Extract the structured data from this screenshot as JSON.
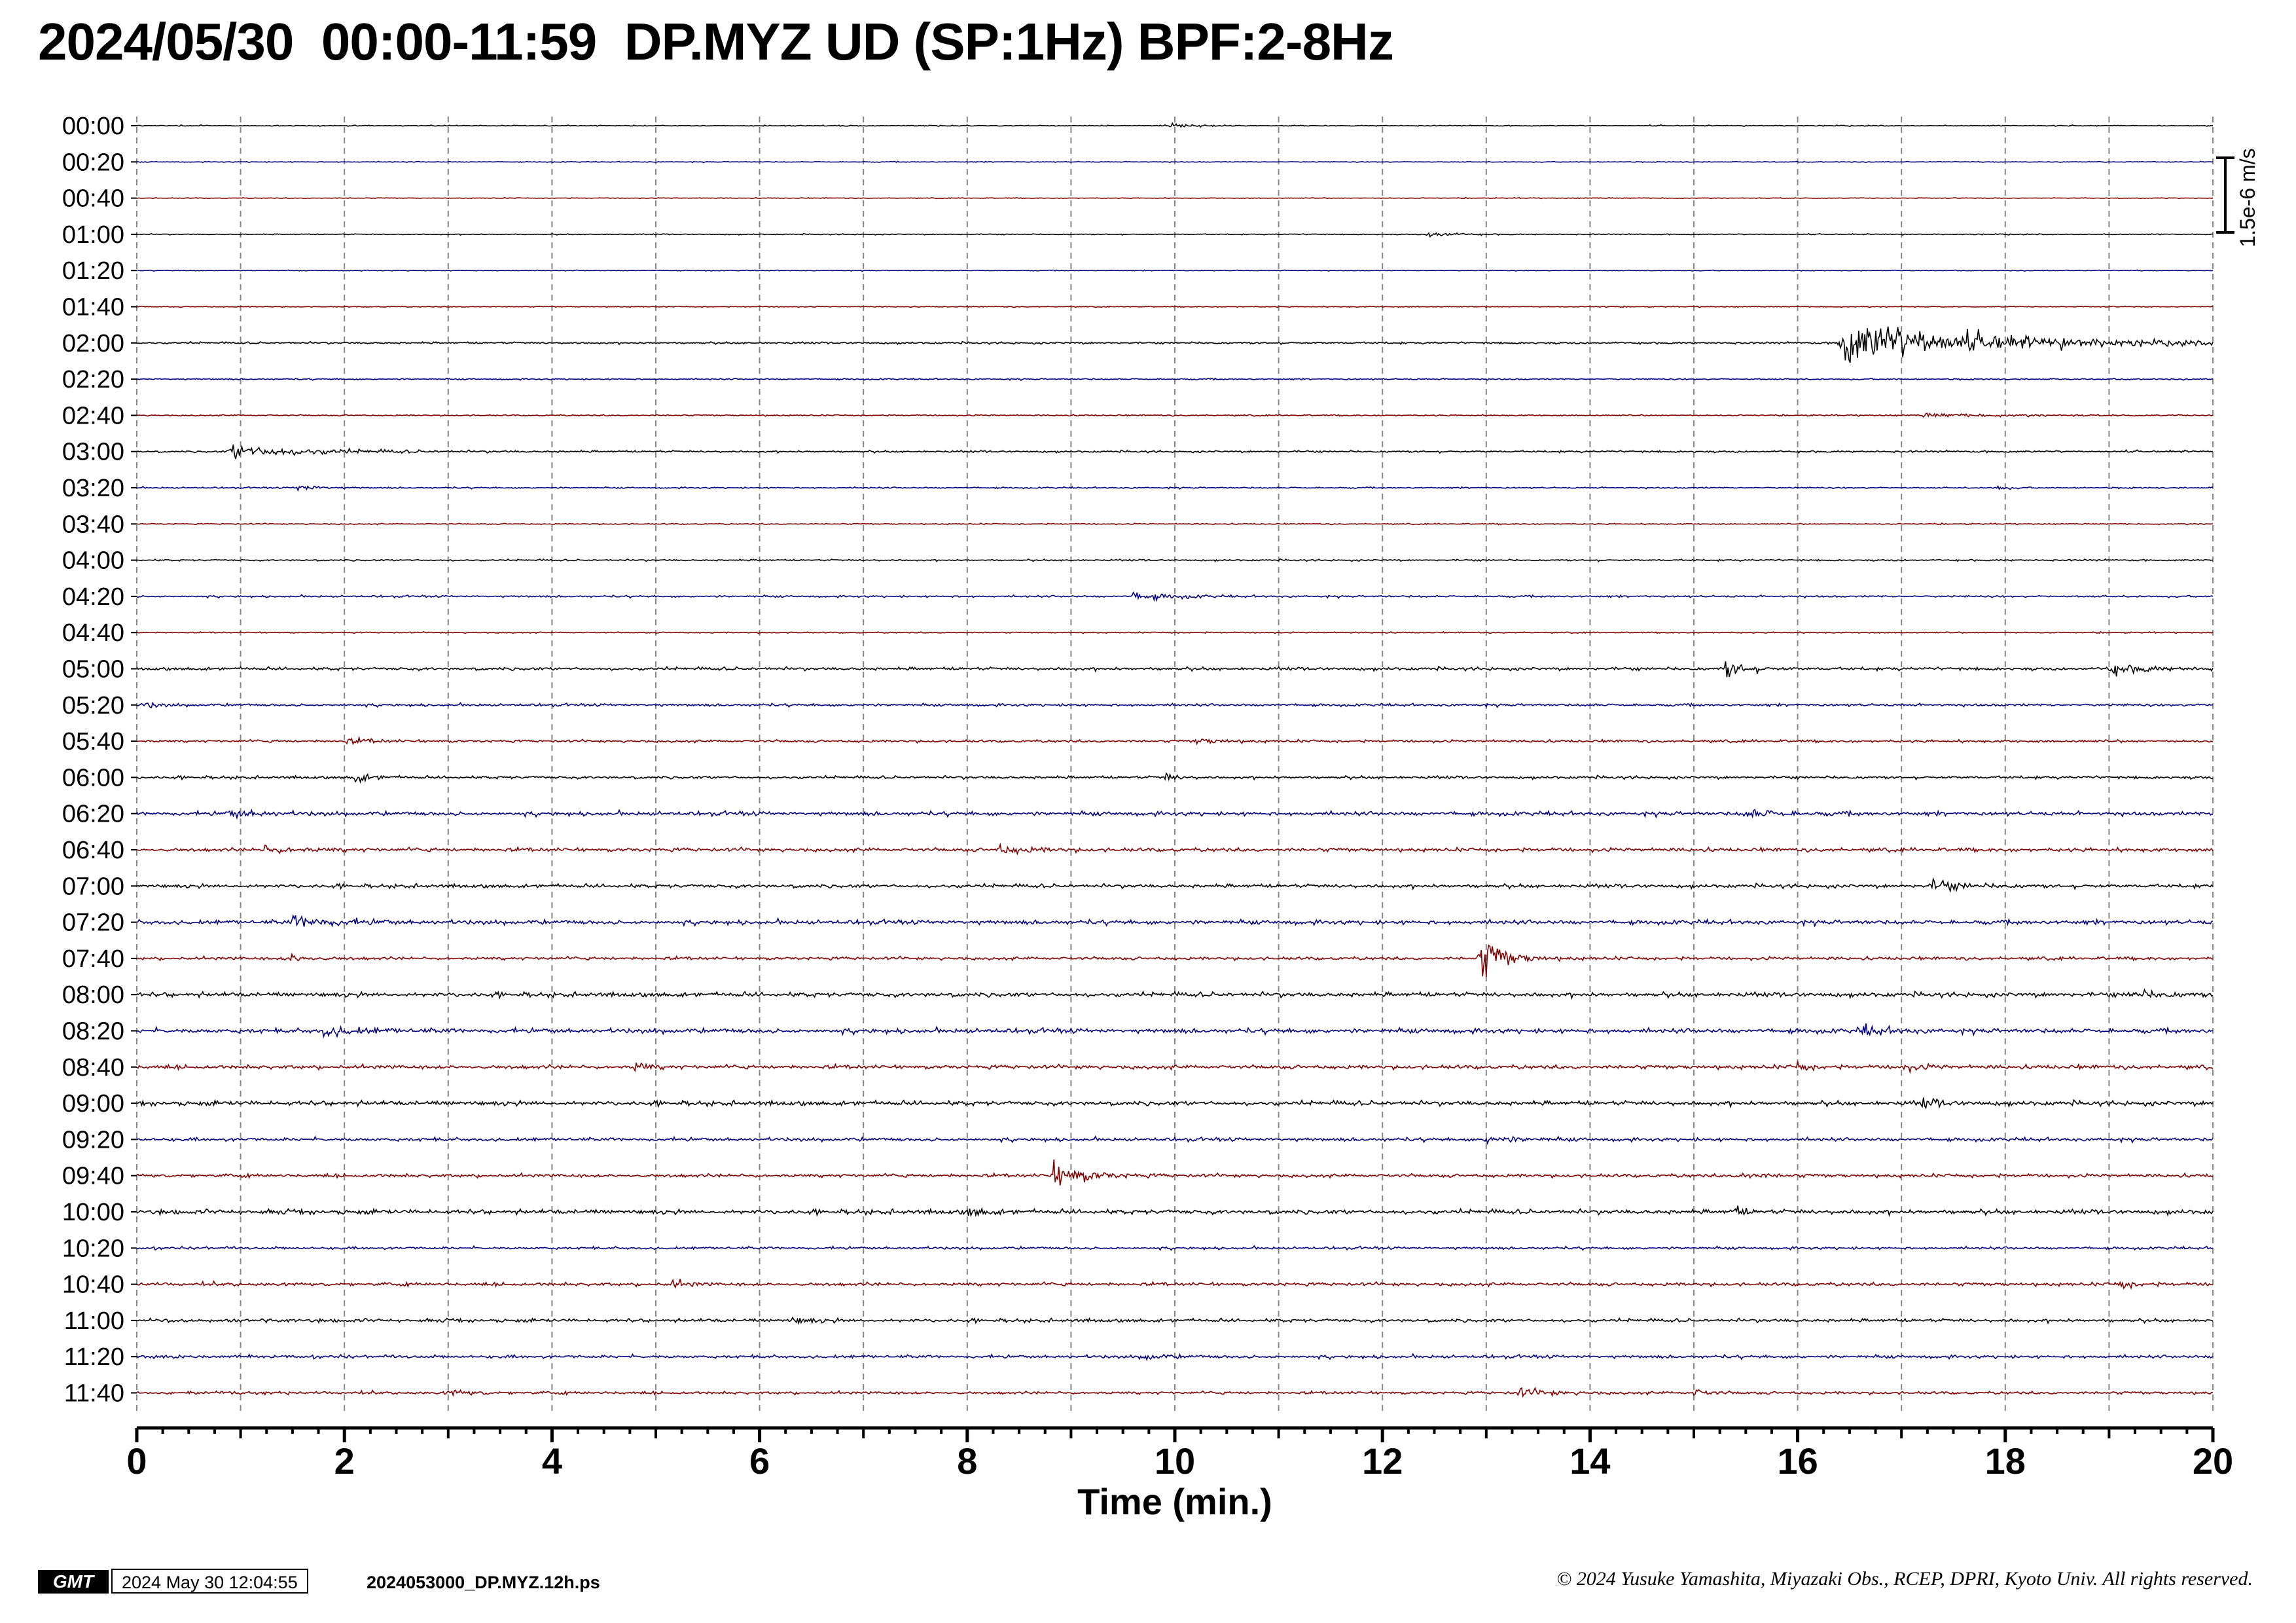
{
  "title": "2024/05/30  00:00-11:59  DP.MYZ UD (SP:1Hz) BPF:2-8Hz",
  "chart_data": {
    "type": "line",
    "title": "2024/05/30  00:00-11:59  DP.MYZ UD (SP:1Hz) BPF:2-8Hz",
    "xlabel": "Time (min.)",
    "xlim": [
      0,
      20
    ],
    "x_ticks": [
      "0",
      "2",
      "4",
      "6",
      "8",
      "10",
      "12",
      "14",
      "16",
      "18",
      "20"
    ],
    "grid": "dashed vertical at every minute",
    "scale_bar_label": "1.5e-6 m/s",
    "trace_colors": [
      "#000000",
      "#000080",
      "#800000"
    ],
    "trace_labels": [
      "00:00",
      "00:20",
      "00:40",
      "01:00",
      "01:20",
      "01:40",
      "02:00",
      "02:20",
      "02:40",
      "03:00",
      "03:20",
      "03:40",
      "04:00",
      "04:20",
      "04:40",
      "05:00",
      "05:20",
      "05:40",
      "06:00",
      "06:20",
      "06:40",
      "07:00",
      "07:20",
      "07:40",
      "08:00",
      "08:20",
      "08:40",
      "09:00",
      "09:20",
      "09:40",
      "10:00",
      "10:20",
      "10:40",
      "11:00",
      "11:20",
      "11:40"
    ],
    "noise_levels": [
      0.18,
      0.15,
      0.14,
      0.18,
      0.15,
      0.18,
      0.35,
      0.25,
      0.25,
      0.35,
      0.25,
      0.22,
      0.3,
      0.35,
      0.22,
      0.55,
      0.45,
      0.45,
      0.5,
      0.7,
      0.65,
      0.65,
      0.75,
      0.55,
      0.8,
      0.8,
      0.7,
      0.8,
      0.6,
      0.6,
      0.8,
      0.45,
      0.6,
      0.6,
      0.55,
      0.5
    ],
    "events": [
      {
        "trace": 0,
        "minute": 9.95,
        "amplitude": 0.9,
        "duration": 0.6
      },
      {
        "trace": 3,
        "minute": 12.45,
        "amplitude": 1.8,
        "duration": 0.5
      },
      {
        "trace": 5,
        "minute": 14.15,
        "amplitude": 0.5,
        "duration": 0.1
      },
      {
        "trace": 6,
        "minute": 16.42,
        "amplitude": 9.0,
        "duration": 3.6
      },
      {
        "trace": 8,
        "minute": 17.2,
        "amplitude": 0.6,
        "duration": 2.5
      },
      {
        "trace": 9,
        "minute": 0.9,
        "amplitude": 2.8,
        "duration": 2.0
      },
      {
        "trace": 10,
        "minute": 1.55,
        "amplitude": 1.4,
        "duration": 0.6
      },
      {
        "trace": 10,
        "minute": 17.9,
        "amplitude": 1.0,
        "duration": 0.3
      },
      {
        "trace": 13,
        "minute": 9.6,
        "amplitude": 1.6,
        "duration": 1.0
      },
      {
        "trace": 15,
        "minute": 15.3,
        "amplitude": 4.0,
        "duration": 0.5
      },
      {
        "trace": 15,
        "minute": 19.0,
        "amplitude": 1.8,
        "duration": 1.0
      },
      {
        "trace": 16,
        "minute": 0.05,
        "amplitude": 1.2,
        "duration": 0.4
      },
      {
        "trace": 17,
        "minute": 2.0,
        "amplitude": 1.0,
        "duration": 0.8
      },
      {
        "trace": 17,
        "minute": 10.2,
        "amplitude": 1.0,
        "duration": 0.8
      },
      {
        "trace": 18,
        "minute": 2.1,
        "amplitude": 2.2,
        "duration": 0.4
      },
      {
        "trace": 18,
        "minute": 9.9,
        "amplitude": 1.8,
        "duration": 0.3
      },
      {
        "trace": 19,
        "minute": 0.9,
        "amplitude": 1.5,
        "duration": 0.8
      },
      {
        "trace": 19,
        "minute": 15.5,
        "amplitude": 1.6,
        "duration": 0.8
      },
      {
        "trace": 20,
        "minute": 1.2,
        "amplitude": 1.4,
        "duration": 1.0
      },
      {
        "trace": 20,
        "minute": 8.3,
        "amplitude": 1.6,
        "duration": 0.8
      },
      {
        "trace": 21,
        "minute": 17.3,
        "amplitude": 2.0,
        "duration": 0.8
      },
      {
        "trace": 22,
        "minute": 1.5,
        "amplitude": 2.6,
        "duration": 1.0
      },
      {
        "trace": 23,
        "minute": 1.45,
        "amplitude": 1.8,
        "duration": 0.5
      },
      {
        "trace": 23,
        "minute": 12.95,
        "amplitude": 9.0,
        "duration": 0.6
      },
      {
        "trace": 24,
        "minute": 19.2,
        "amplitude": 1.4,
        "duration": 0.8
      },
      {
        "trace": 25,
        "minute": 1.8,
        "amplitude": 1.6,
        "duration": 1.0
      },
      {
        "trace": 25,
        "minute": 16.6,
        "amplitude": 2.0,
        "duration": 0.7
      },
      {
        "trace": 26,
        "minute": 4.8,
        "amplitude": 2.2,
        "duration": 0.3
      },
      {
        "trace": 26,
        "minute": 16.0,
        "amplitude": 1.6,
        "duration": 0.3
      },
      {
        "trace": 26,
        "minute": 17.0,
        "amplitude": 1.4,
        "duration": 0.5
      },
      {
        "trace": 27,
        "minute": 17.2,
        "amplitude": 1.8,
        "duration": 0.4
      },
      {
        "trace": 28,
        "minute": 13.0,
        "amplitude": 1.4,
        "duration": 0.8
      },
      {
        "trace": 29,
        "minute": 8.83,
        "amplitude": 5.0,
        "duration": 0.8
      },
      {
        "trace": 29,
        "minute": 15.45,
        "amplitude": 1.6,
        "duration": 0.5
      },
      {
        "trace": 30,
        "minute": 15.4,
        "amplitude": 2.4,
        "duration": 0.2
      },
      {
        "trace": 30,
        "minute": 8.0,
        "amplitude": 1.4,
        "duration": 0.5
      },
      {
        "trace": 32,
        "minute": 5.15,
        "amplitude": 1.6,
        "duration": 0.4
      },
      {
        "trace": 32,
        "minute": 19.1,
        "amplitude": 1.6,
        "duration": 0.4
      },
      {
        "trace": 33,
        "minute": 6.3,
        "amplitude": 1.2,
        "duration": 0.6
      },
      {
        "trace": 34,
        "minute": 9.7,
        "amplitude": 1.2,
        "duration": 0.5
      },
      {
        "trace": 35,
        "minute": 3.0,
        "amplitude": 1.2,
        "duration": 0.6
      },
      {
        "trace": 35,
        "minute": 13.3,
        "amplitude": 1.8,
        "duration": 0.8
      },
      {
        "trace": 35,
        "minute": 15.0,
        "amplitude": 1.4,
        "duration": 0.4
      }
    ]
  },
  "footer": {
    "logo": "GMT",
    "date": "2024 May 30 12:04:55",
    "file": "2024053000_DP.MYZ.12h.ps",
    "copyright": "© 2024 Yusuke Yamashita, Miyazaki Obs., RCEP, DPRI, Kyoto Univ. All rights reserved."
  }
}
